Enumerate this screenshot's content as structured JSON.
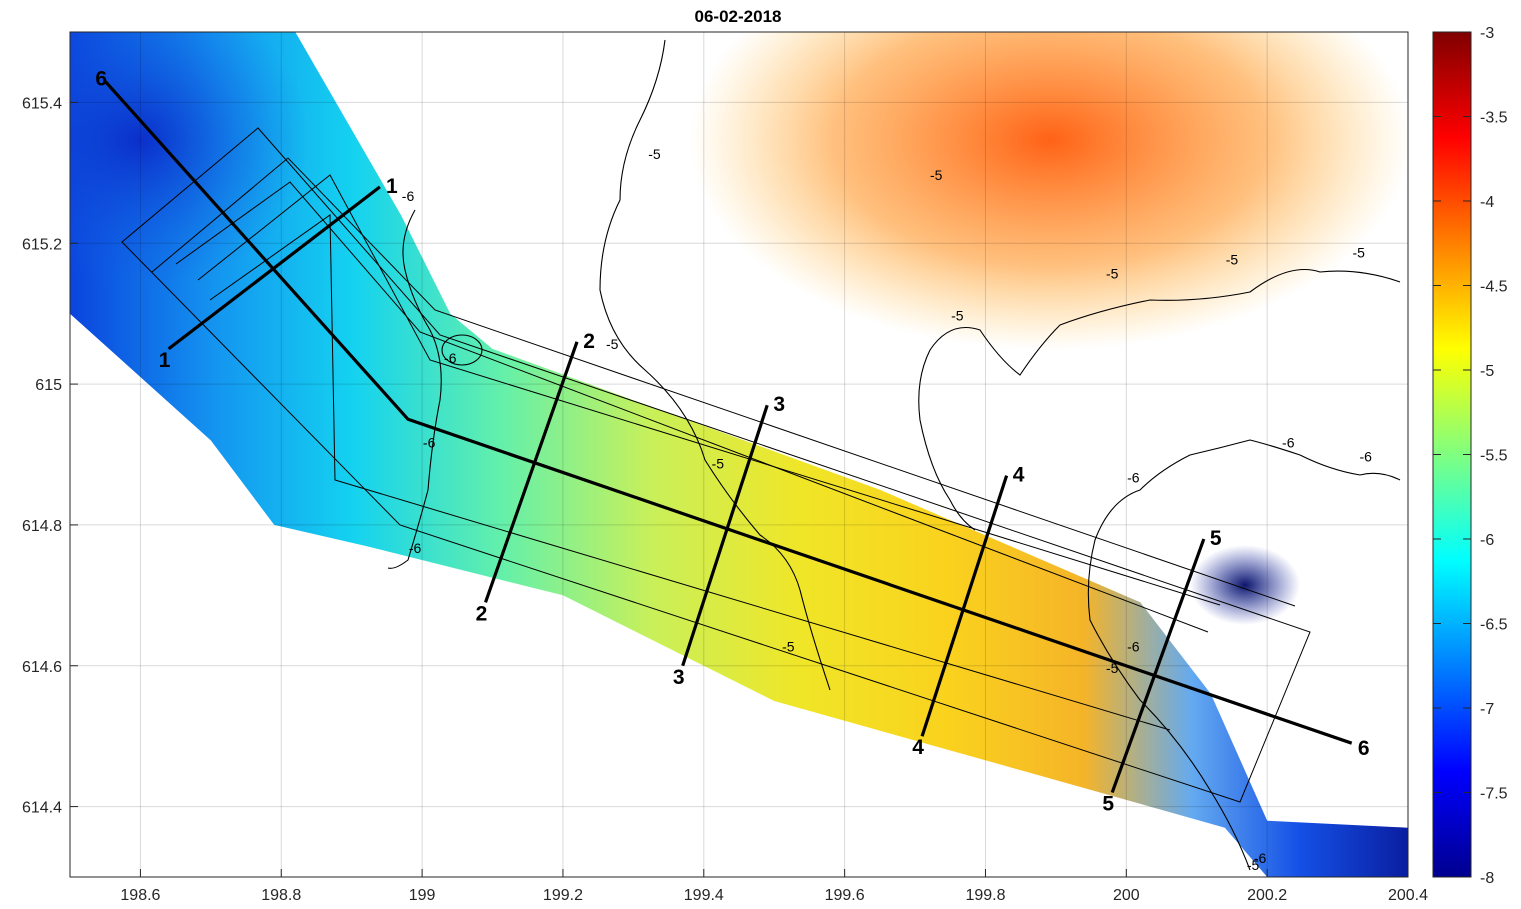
{
  "chart_data": {
    "type": "heatmap",
    "title": "06-02-2018",
    "xlabel": "",
    "ylabel": "",
    "xlim": [
      198.5,
      200.4
    ],
    "ylim": [
      614.3,
      615.5
    ],
    "x_ticks": [
      198.6,
      198.8,
      199,
      199.2,
      199.4,
      199.6,
      199.8,
      200,
      200.2,
      200.4
    ],
    "x_tick_labels": [
      "198.6",
      "198.8",
      "199",
      "199.2",
      "199.4",
      "199.6",
      "199.8",
      "200",
      "200.2",
      "200.4"
    ],
    "y_ticks": [
      614.4,
      614.6,
      614.8,
      615,
      615.2,
      615.4
    ],
    "y_tick_labels": [
      "614.4",
      "614.6",
      "614.8",
      "615",
      "615.2",
      "615.4"
    ],
    "grid": true,
    "colorbar": {
      "colormap": "jet",
      "range": [
        -8,
        -3
      ],
      "ticks": [
        -3,
        -3.5,
        -4,
        -4.5,
        -5,
        -5.5,
        -6,
        -6.5,
        -7,
        -7.5,
        -8
      ],
      "tick_labels": [
        "-3",
        "-3.5",
        "-4",
        "-4.5",
        "-5",
        "-5.5",
        "-6",
        "-6.5",
        "-7",
        "-7.5",
        "-8"
      ]
    },
    "contour_levels": [
      -5,
      -6
    ],
    "contour_labels": [
      {
        "text": "-5",
        "x": 199.33,
        "y": 615.32
      },
      {
        "text": "-5",
        "x": 199.73,
        "y": 615.29
      },
      {
        "text": "-5",
        "x": 199.27,
        "y": 615.05
      },
      {
        "text": "-5",
        "x": 199.76,
        "y": 615.09
      },
      {
        "text": "-5",
        "x": 199.98,
        "y": 615.15
      },
      {
        "text": "-5",
        "x": 200.15,
        "y": 615.17
      },
      {
        "text": "-5",
        "x": 200.33,
        "y": 615.18
      },
      {
        "text": "-5",
        "x": 199.42,
        "y": 614.88
      },
      {
        "text": "-5",
        "x": 199.52,
        "y": 614.62
      },
      {
        "text": "-5",
        "x": 199.98,
        "y": 614.59
      },
      {
        "text": "-5",
        "x": 200.18,
        "y": 614.31
      },
      {
        "text": "-6",
        "x": 198.98,
        "y": 615.26
      },
      {
        "text": "-6",
        "x": 199.04,
        "y": 615.03
      },
      {
        "text": "-6",
        "x": 199.01,
        "y": 614.91
      },
      {
        "text": "-6",
        "x": 198.99,
        "y": 614.76
      },
      {
        "text": "-6",
        "x": 200.01,
        "y": 614.86
      },
      {
        "text": "-6",
        "x": 200.23,
        "y": 614.91
      },
      {
        "text": "-6",
        "x": 200.34,
        "y": 614.89
      },
      {
        "text": "-6",
        "x": 200.01,
        "y": 614.62
      },
      {
        "text": "-6",
        "x": 200.19,
        "y": 614.32
      }
    ],
    "profiles": [
      {
        "label": "1",
        "start": [
          198.64,
          615.05
        ],
        "end": [
          198.94,
          615.28
        ]
      },
      {
        "label": "2",
        "start": [
          199.09,
          614.69
        ],
        "end": [
          199.22,
          615.06
        ]
      },
      {
        "label": "3",
        "start": [
          199.37,
          614.6
        ],
        "end": [
          199.49,
          614.97
        ]
      },
      {
        "label": "4",
        "start": [
          199.71,
          614.5
        ],
        "end": [
          199.83,
          614.87
        ]
      },
      {
        "label": "5",
        "start": [
          199.98,
          614.42
        ],
        "end": [
          200.11,
          614.78
        ]
      },
      {
        "label": "6",
        "vertices": [
          [
            198.55,
            615.43
          ],
          [
            198.98,
            614.95
          ],
          [
            200.32,
            614.49
          ]
        ]
      }
    ],
    "survey_polygon": [
      [
        198.48,
        615.5
      ],
      [
        198.82,
        615.5
      ],
      [
        198.97,
        615.24
      ],
      [
        199.04,
        615.1
      ],
      [
        199.1,
        615.05
      ],
      [
        199.65,
        614.85
      ],
      [
        200.02,
        614.69
      ],
      [
        200.12,
        614.56
      ],
      [
        200.2,
        614.38
      ],
      [
        200.4,
        614.37
      ],
      [
        200.4,
        614.3
      ],
      [
        200.2,
        614.3
      ],
      [
        200.14,
        614.37
      ],
      [
        199.82,
        614.46
      ],
      [
        199.5,
        614.55
      ],
      [
        199.2,
        614.7
      ],
      [
        198.92,
        614.77
      ],
      [
        198.79,
        614.8
      ],
      [
        198.7,
        614.92
      ],
      [
        198.5,
        615.1
      ]
    ]
  }
}
